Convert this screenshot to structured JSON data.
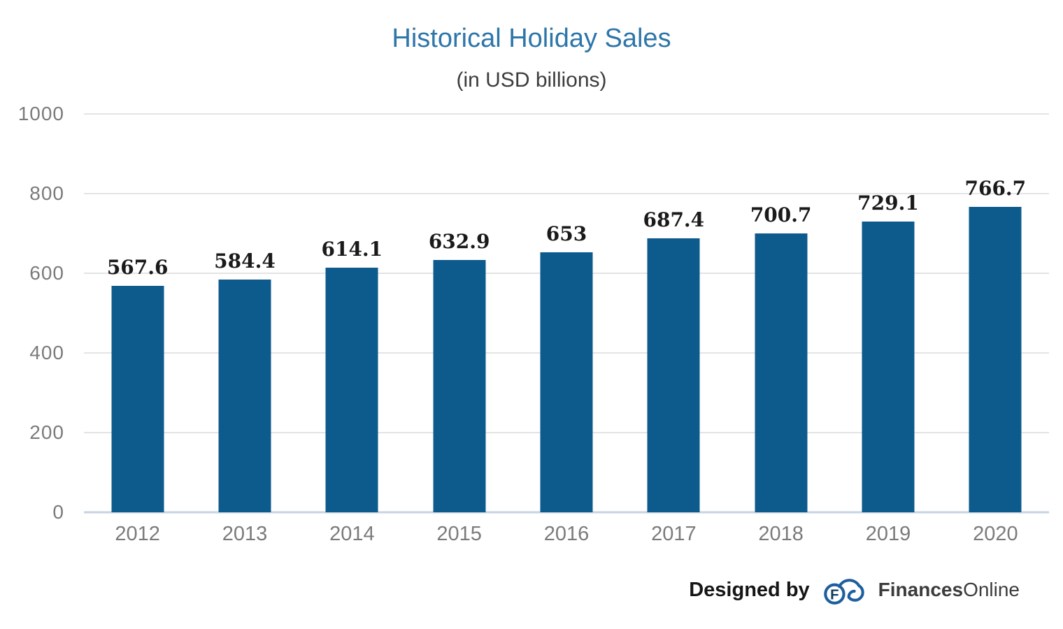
{
  "chart_data": {
    "type": "bar",
    "title": "Historical Holiday Sales",
    "subtitle": "(in USD billions)",
    "categories": [
      "2012",
      "2013",
      "2014",
      "2015",
      "2016",
      "2017",
      "2018",
      "2019",
      "2020"
    ],
    "values": [
      567.6,
      584.4,
      614.1,
      632.9,
      653,
      687.4,
      700.7,
      729.1,
      766.7
    ],
    "xlabel": "",
    "ylabel": "",
    "ylim": [
      0,
      1000
    ],
    "yticks": [
      0,
      200,
      400,
      600,
      800,
      1000
    ],
    "grid": true,
    "legend_position": "none"
  },
  "footer": {
    "designed_by": "Designed by",
    "brand_bold": "Finances",
    "brand_regular": "Online",
    "logo": "financesonline-cloud-logo"
  },
  "colors": {
    "bar": "#0d5a8c",
    "title": "#2d76a9",
    "subtitle": "#3d3d3d",
    "axis_text": "#7b7b7b",
    "gridline": "#e4e4e4",
    "axis_line": "#c7d4e2",
    "value_label": "#1a1a1a",
    "brand_text": "#3c3c3c",
    "logo_blue": "#1d5f9e",
    "logo_letter": "#12395e"
  }
}
